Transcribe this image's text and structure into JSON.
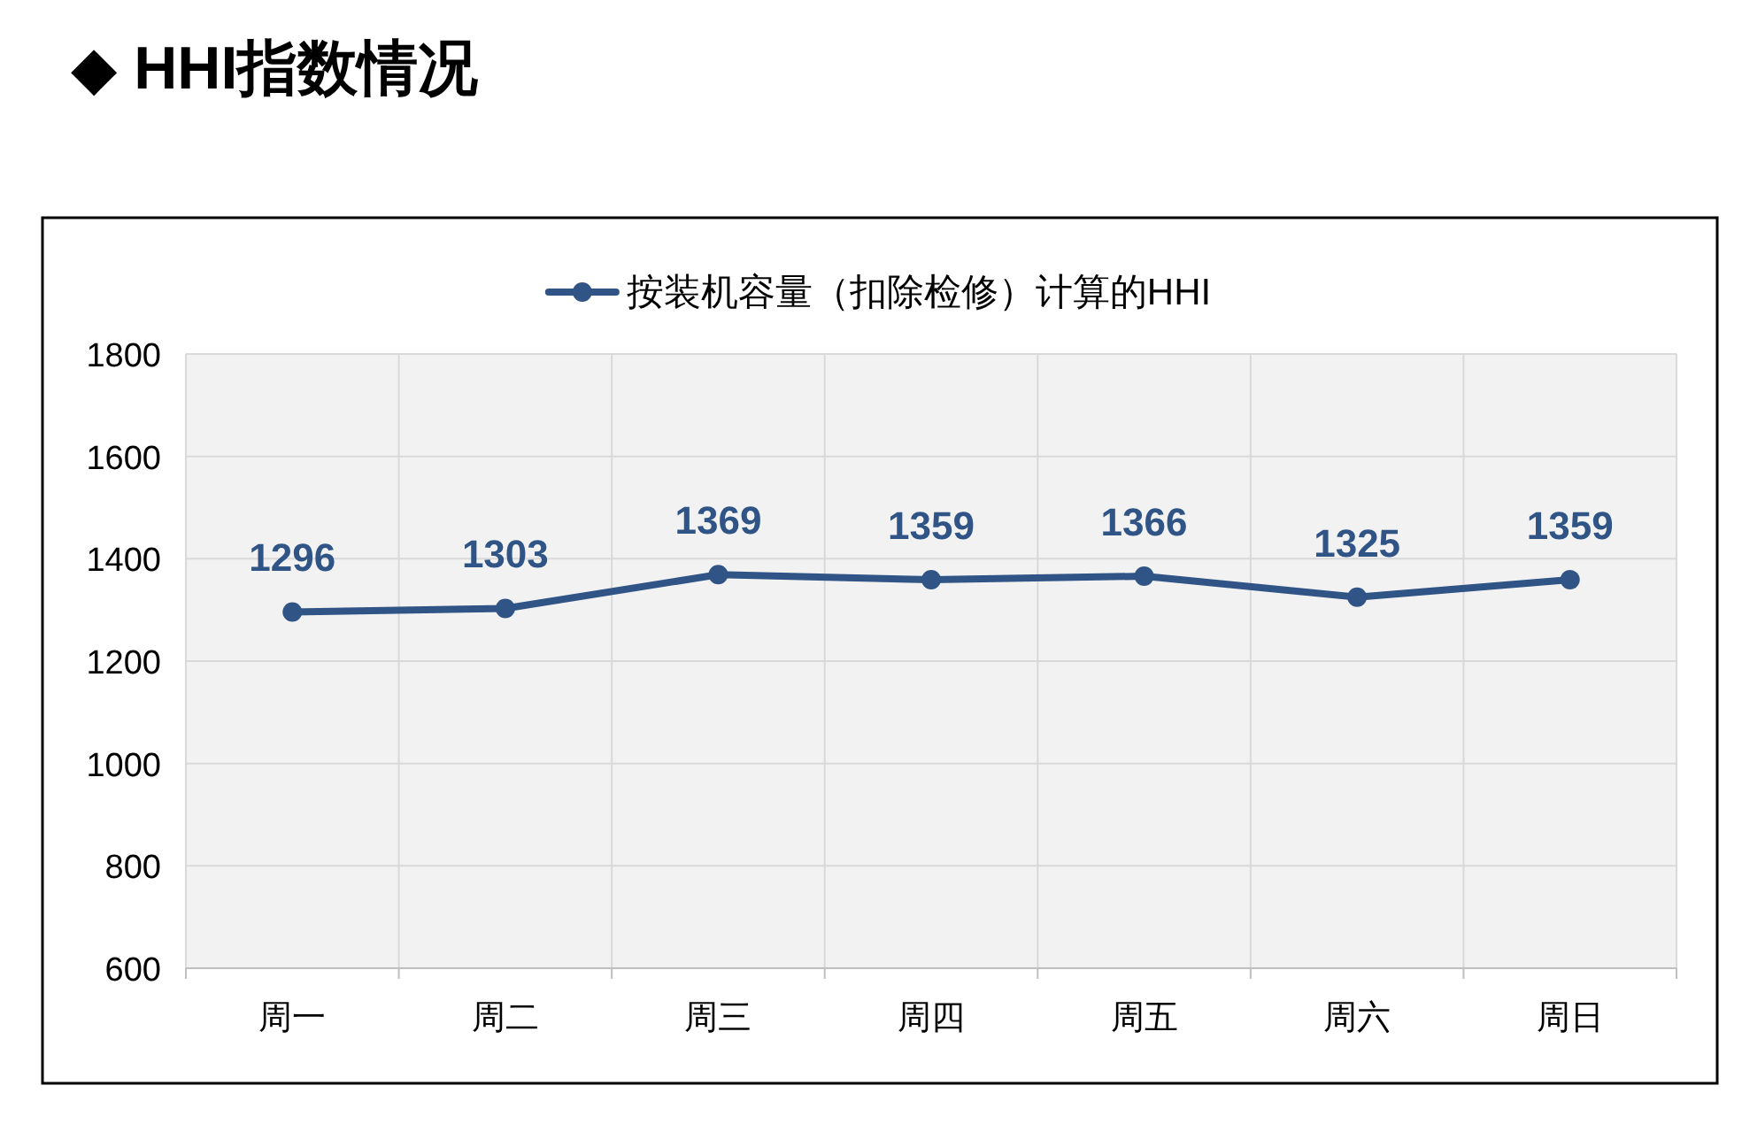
{
  "chart_data": {
    "type": "line",
    "title": "◆ HHI指数情况",
    "categories": [
      "周一",
      "周二",
      "周三",
      "周四",
      "周五",
      "周六",
      "周日"
    ],
    "series": [
      {
        "name": "按装机容量（扣除检修）计算的HHI",
        "color": "#2f5485",
        "values": [
          1296,
          1303,
          1369,
          1359,
          1366,
          1325,
          1359
        ]
      }
    ],
    "ylim": [
      600,
      1800
    ],
    "yticks": [
      600,
      800,
      1000,
      1200,
      1400,
      1600,
      1800
    ],
    "grid": true,
    "legend": "top",
    "marker": "circle",
    "line_style": "solid",
    "data_labels": true
  }
}
